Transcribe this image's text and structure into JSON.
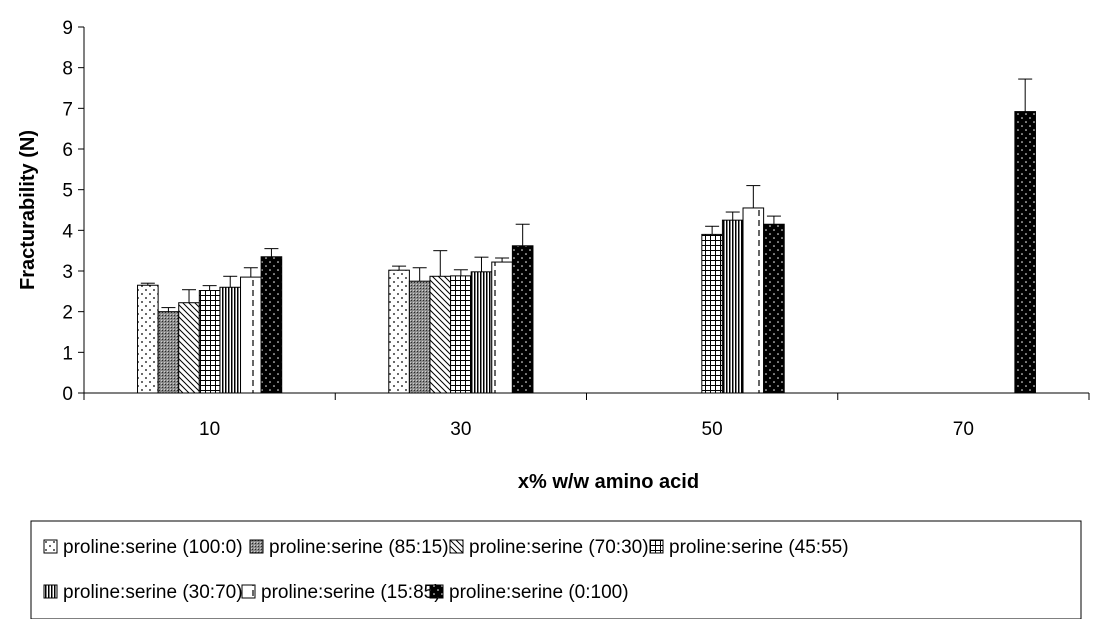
{
  "chart_data": {
    "type": "bar",
    "title": "",
    "xlabel": "x% w/w amino acid",
    "ylabel": "Fracturability (N)",
    "categories": [
      "10",
      "30",
      "50",
      "70"
    ],
    "ylim": [
      0,
      9
    ],
    "yticks": [
      0,
      1,
      2,
      3,
      4,
      5,
      6,
      7,
      8,
      9
    ],
    "grid": false,
    "legend_position": "bottom",
    "series": [
      {
        "name": "proline:serine (100:0)",
        "pattern": "dots-sparse",
        "values": [
          2.65,
          3.02,
          null,
          null
        ],
        "errors": [
          0.05,
          0.1,
          null,
          null
        ]
      },
      {
        "name": "proline:serine (85:15)",
        "pattern": "crosshatch-dense",
        "values": [
          2.0,
          2.75,
          null,
          null
        ],
        "errors": [
          0.1,
          0.33,
          null,
          null
        ]
      },
      {
        "name": "proline:serine (70:30)",
        "pattern": "diagonal",
        "values": [
          2.22,
          2.87,
          null,
          null
        ],
        "errors": [
          0.32,
          0.63,
          null,
          null
        ]
      },
      {
        "name": "proline:serine (45:55)",
        "pattern": "grid",
        "values": [
          2.52,
          2.88,
          3.9,
          null
        ],
        "errors": [
          0.12,
          0.15,
          0.2,
          null
        ]
      },
      {
        "name": "proline:serine (30:70)",
        "pattern": "vertical",
        "values": [
          2.6,
          2.98,
          4.25,
          null
        ],
        "errors": [
          0.27,
          0.36,
          0.2,
          null
        ]
      },
      {
        "name": "proline:serine (15:85)",
        "pattern": "dashed-vertical",
        "values": [
          2.85,
          3.22,
          4.55,
          null
        ],
        "errors": [
          0.23,
          0.1,
          0.55,
          null
        ]
      },
      {
        "name": "proline:serine (0:100)",
        "pattern": "black-dots",
        "values": [
          3.35,
          3.62,
          4.15,
          6.92
        ],
        "errors": [
          0.2,
          0.53,
          0.2,
          0.8
        ]
      }
    ]
  }
}
